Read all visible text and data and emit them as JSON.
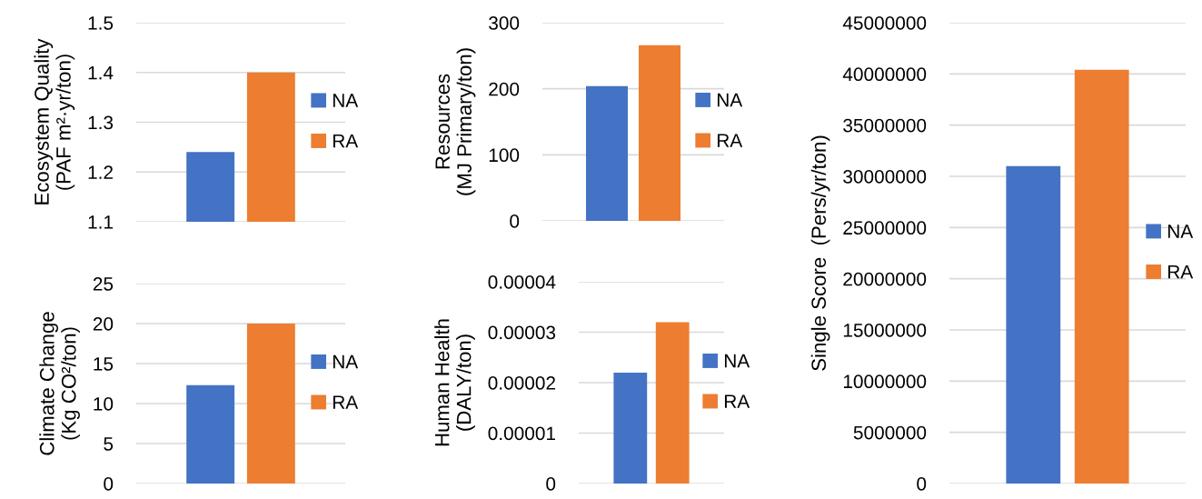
{
  "chart_data": [
    {
      "type": "bar",
      "ylabel": "Ecosystem Quality\n(PAF m²·yr/ton)",
      "categories": [
        null
      ],
      "series": [
        {
          "name": "NA",
          "color": "#4472c4",
          "values": [
            1.24
          ]
        },
        {
          "name": "RA",
          "color": "#ed7d31",
          "values": [
            1.4
          ]
        }
      ],
      "ylim": [
        1.1,
        1.5
      ],
      "yticks": [
        1.1,
        1.2,
        1.3,
        1.4,
        1.5
      ],
      "grid": "y",
      "legend": "right"
    },
    {
      "type": "bar",
      "ylabel": "Resources\n(MJ Primary/ton)",
      "categories": [
        null
      ],
      "series": [
        {
          "name": "NA",
          "color": "#4472c4",
          "values": [
            204
          ]
        },
        {
          "name": "RA",
          "color": "#ed7d31",
          "values": [
            266
          ]
        }
      ],
      "ylim": [
        0,
        300
      ],
      "yticks": [
        0,
        100,
        200,
        300
      ],
      "grid": "y",
      "legend": "right"
    },
    {
      "type": "bar",
      "ylabel": "Single Score  (Pers/yr/ton)",
      "categories": [
        null
      ],
      "series": [
        {
          "name": "NA",
          "color": "#4472c4",
          "values": [
            31000000
          ]
        },
        {
          "name": "RA",
          "color": "#ed7d31",
          "values": [
            40400000
          ]
        }
      ],
      "ylim": [
        0,
        45000000
      ],
      "yticks": [
        0,
        5000000,
        10000000,
        15000000,
        20000000,
        25000000,
        30000000,
        35000000,
        40000000,
        45000000
      ],
      "grid": "y",
      "legend": "right"
    },
    {
      "type": "bar",
      "ylabel": "Climate Change\n(Kg CO²/ton)",
      "categories": [
        null
      ],
      "series": [
        {
          "name": "NA",
          "color": "#4472c4",
          "values": [
            12.3
          ]
        },
        {
          "name": "RA",
          "color": "#ed7d31",
          "values": [
            20.0
          ]
        }
      ],
      "ylim": [
        0,
        25
      ],
      "yticks": [
        0,
        5,
        10,
        15,
        20,
        25
      ],
      "grid": "y",
      "legend": "right"
    },
    {
      "type": "bar",
      "ylabel": "Human Health\n(DALY/ton)",
      "categories": [
        null
      ],
      "series": [
        {
          "name": "NA",
          "color": "#4472c4",
          "values": [
            2.2e-05
          ]
        },
        {
          "name": "RA",
          "color": "#ed7d31",
          "values": [
            3.2e-05
          ]
        }
      ],
      "ylim": [
        0,
        4e-05
      ],
      "yticks": [
        0,
        {
          "value": 1e-05,
          "label": "0.00001"
        },
        {
          "value": 2e-05,
          "label": "0.00002"
        },
        {
          "value": 3e-05,
          "label": "0.00003"
        },
        {
          "value": 4e-05,
          "label": "0.00004"
        }
      ],
      "grid": "y",
      "legend": "right"
    }
  ]
}
